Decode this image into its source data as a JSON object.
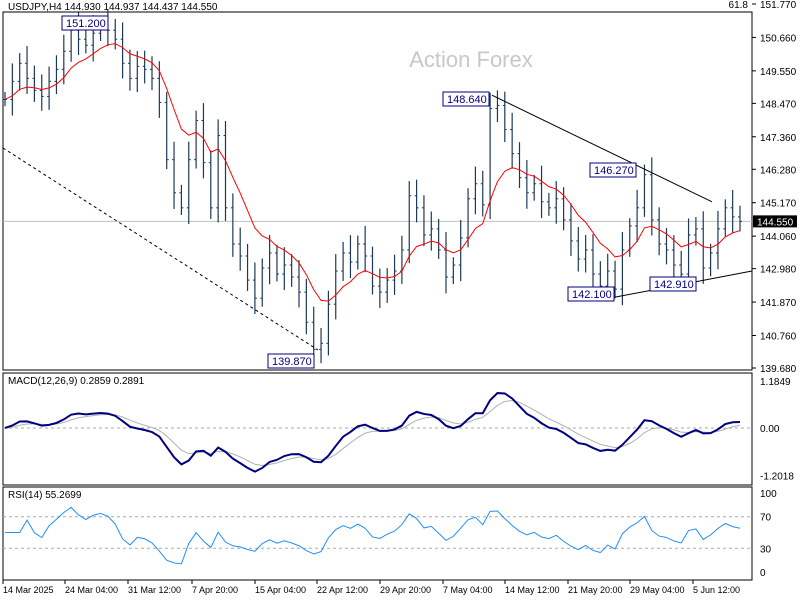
{
  "header": {
    "symbol": "USDJPY,H4",
    "ohlc": "144.930 144.937 144.437 144.550",
    "fib_label": "61.8"
  },
  "watermark": "Action Forex",
  "colors": {
    "bars": "#1c3a57",
    "ma": "#ff0000",
    "macd": "#000080",
    "signal": "#b0b0b0",
    "rsi": "#1e90ff",
    "label_border": "#000080"
  },
  "chart_data": [
    {
      "type": "line",
      "name": "price",
      "ylim": [
        139.68,
        151.77
      ],
      "y_ticks": [
        "151.770",
        "150.660",
        "149.550",
        "148.470",
        "147.360",
        "146.280",
        "145.170",
        "144.060",
        "142.980",
        "141.870",
        "140.760",
        "139.680"
      ],
      "y_tick_values": [
        151.77,
        150.66,
        149.55,
        148.47,
        147.36,
        146.28,
        145.17,
        144.06,
        142.98,
        141.87,
        140.76,
        139.68
      ],
      "current_price": "144.550",
      "current_value": 144.55,
      "closes": [
        148.6,
        149.2,
        149.8,
        149.3,
        148.9,
        148.7,
        149.2,
        149.6,
        150.2,
        150.9,
        150.6,
        150.4,
        150.8,
        151.0,
        150.9,
        150.6,
        149.8,
        149.3,
        149.7,
        149.6,
        149.3,
        148.5,
        146.6,
        145.5,
        145.0,
        146.6,
        147.9,
        146.5,
        145.0,
        147.4,
        145.0,
        143.8,
        143.4,
        142.6,
        142.0,
        143.0,
        143.5,
        142.8,
        143.1,
        142.7,
        142.2,
        141.2,
        140.3,
        140.5,
        141.8,
        142.9,
        143.5,
        143.2,
        143.8,
        143.4,
        142.4,
        142.2,
        142.6,
        142.9,
        143.6,
        145.4,
        145.0,
        144.1,
        144.3,
        143.6,
        142.7,
        143.1,
        144.0,
        145.3,
        145.8,
        145.1,
        148.3,
        148.4,
        147.6,
        146.8,
        146.0,
        145.5,
        145.8,
        145.2,
        145.0,
        145.3,
        144.6,
        143.9,
        143.3,
        143.6,
        142.8,
        142.4,
        142.9,
        142.3,
        143.6,
        144.4,
        145.0,
        146.1,
        144.6,
        143.8,
        143.6,
        143.1,
        142.8,
        144.1,
        144.3,
        143.0,
        143.5,
        144.3,
        145.0,
        144.7,
        144.55
      ],
      "annotations": [
        {
          "text": "151.200",
          "value": 151.2
        },
        {
          "text": "148.640",
          "value": 148.64
        },
        {
          "text": "146.270",
          "value": 146.27
        },
        {
          "text": "142.100",
          "value": 142.1
        },
        {
          "text": "142.910",
          "value": 142.91
        },
        {
          "text": "139.870",
          "value": 139.87
        }
      ],
      "x_ticks": [
        "14 Mar 2025",
        "24 Mar 04:00",
        "31 Mar 12:00",
        "7 Apr 20:00",
        "15 Apr 04:00",
        "22 Apr 12:00",
        "29 Apr 20:00",
        "7 May 04:00",
        "14 May 12:00",
        "21 May 20:00",
        "29 May 04:00",
        "5 Jun 12:00"
      ]
    },
    {
      "type": "line",
      "title": "MACD(12,26,9) 0.2859 0.2891",
      "ylim": [
        -1.2018,
        1.1849
      ],
      "y_ticks": [
        "1.1849",
        "0.00",
        "-1.2018"
      ]
    },
    {
      "type": "line",
      "title": "RSI(14) 55.2699",
      "ylim": [
        0,
        100
      ],
      "y_ticks": [
        "100",
        "70",
        "30",
        "0"
      ],
      "levels": [
        70,
        30
      ]
    }
  ]
}
